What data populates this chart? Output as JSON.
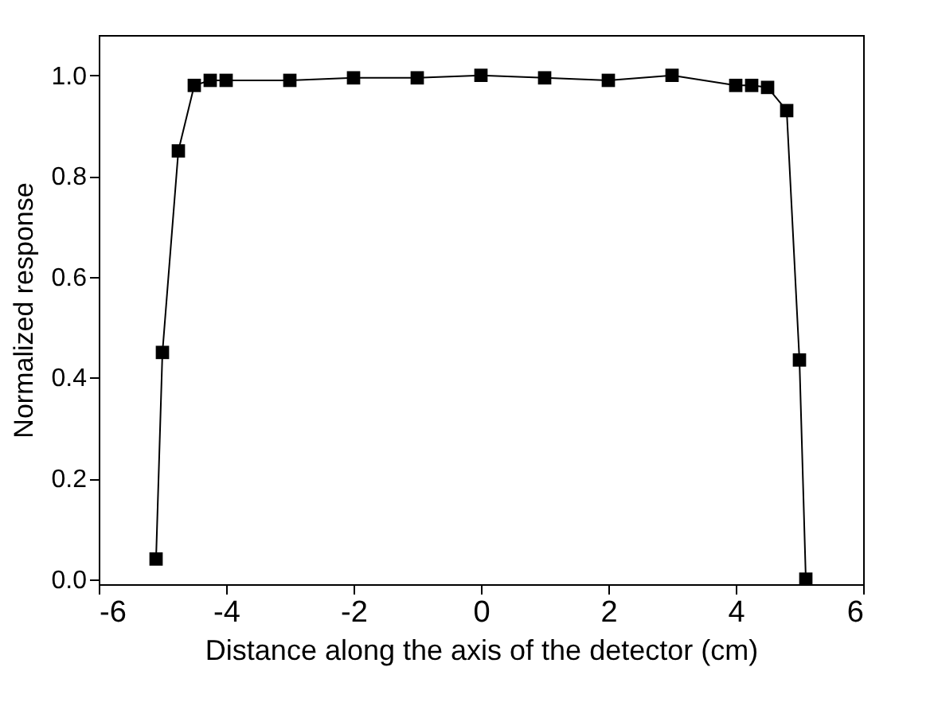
{
  "chart_data": {
    "type": "line",
    "xlabel": "Distance along the axis of the detector (cm)",
    "ylabel": "Normalized response",
    "x": [
      -5.1,
      -5.0,
      -4.75,
      -4.5,
      -4.25,
      -4.0,
      -3,
      -2,
      -1,
      0,
      1,
      2,
      3,
      4,
      4.25,
      4.5,
      4.8,
      5.0,
      5.1
    ],
    "series": [
      {
        "color": "#000000",
        "values": [
          0.04,
          0.45,
          0.85,
          0.98,
          0.99,
          0.99,
          0.99,
          0.995,
          0.995,
          1.0,
          0.995,
          0.99,
          1.0,
          0.98,
          0.98,
          0.976,
          0.93,
          0.435,
          0.0
        ]
      }
    ],
    "xlim": [
      -6,
      6
    ],
    "xticks": [
      -6,
      -4,
      -2,
      0,
      2,
      4,
      6
    ],
    "ylim": [
      -0.01,
      1.08
    ],
    "yticks": [
      {
        "value": 0,
        "label": "0.0"
      },
      {
        "value": 0.2,
        "label": "0.2"
      },
      {
        "value": 0.4,
        "label": "0.4"
      },
      {
        "value": 0.6,
        "label": "0.6"
      },
      {
        "value": 0.8,
        "label": "0.8"
      },
      {
        "value": 1,
        "label": "1.0"
      }
    ],
    "marker": "square",
    "line_style": "solid",
    "grid": false,
    "legend": false
  }
}
